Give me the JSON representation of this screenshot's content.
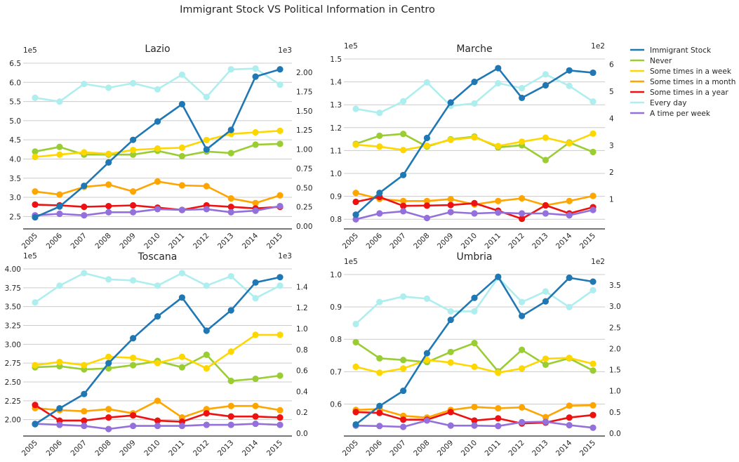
{
  "figure_title": "Immigrant Stock VS Political Information in Centro",
  "years": [
    "2005",
    "2006",
    "2007",
    "2008",
    "2009",
    "2010",
    "2011",
    "2012",
    "2013",
    "2014",
    "2015"
  ],
  "legend": [
    {
      "name": "Immigrant Stock",
      "color": "#1f77b4"
    },
    {
      "name": "Never",
      "color": "#9acd32"
    },
    {
      "name": "Some times in a week",
      "color": "#ffd700"
    },
    {
      "name": "Some times in a month",
      "color": "#ffa500"
    },
    {
      "name": "Some times in a year",
      "color": "#ee1111"
    },
    {
      "name": "Every day",
      "color": "#afeeee"
    },
    {
      "name": "A time per week",
      "color": "#9370db"
    }
  ],
  "chart_data": [
    {
      "type": "line",
      "title": "Lazio",
      "x": [
        "2005",
        "2006",
        "2007",
        "2008",
        "2009",
        "2010",
        "2011",
        "2012",
        "2013",
        "2014",
        "2015"
      ],
      "left_axis": {
        "multiplier": "1e5",
        "lim": [
          2.25,
          6.5
        ],
        "ticks": [
          "2.5",
          "3.0",
          "3.5",
          "4.0",
          "4.5",
          "5.0",
          "5.5",
          "6.0",
          "6.5"
        ]
      },
      "right_axis": {
        "multiplier": "1e3",
        "lim": [
          0,
          2.12
        ],
        "ticks": [
          "0.00",
          "0.25",
          "0.50",
          "0.75",
          "1.00",
          "1.25",
          "1.50",
          "1.75",
          "2.00"
        ]
      },
      "series": [
        {
          "name": "Immigrant Stock",
          "axis": "left",
          "values": [
            2.48,
            2.76,
            3.3,
            3.91,
            4.5,
            4.98,
            5.43,
            4.25,
            4.76,
            6.15,
            6.34
          ]
        },
        {
          "name": "Never",
          "axis": "right",
          "values": [
            0.97,
            1.03,
            0.93,
            0.93,
            0.93,
            0.98,
            0.91,
            0.97,
            0.95,
            1.06,
            1.07
          ]
        },
        {
          "name": "Some times in a week",
          "axis": "right",
          "values": [
            0.9,
            0.93,
            0.96,
            0.94,
            0.99,
            1.01,
            1.02,
            1.12,
            1.2,
            1.22,
            1.24
          ]
        },
        {
          "name": "Some times in a month",
          "axis": "right",
          "values": [
            0.45,
            0.41,
            0.51,
            0.54,
            0.45,
            0.58,
            0.53,
            0.52,
            0.36,
            0.3,
            0.4
          ]
        },
        {
          "name": "Some times in a year",
          "axis": "right",
          "values": [
            0.28,
            0.27,
            0.25,
            0.26,
            0.27,
            0.24,
            0.21,
            0.27,
            0.25,
            0.23,
            0.25
          ]
        },
        {
          "name": "Every day",
          "axis": "right",
          "values": [
            1.67,
            1.62,
            1.85,
            1.8,
            1.86,
            1.78,
            1.97,
            1.68,
            2.04,
            2.05,
            1.84
          ]
        },
        {
          "name": "A time per week",
          "axis": "right",
          "values": [
            0.14,
            0.16,
            0.14,
            0.18,
            0.18,
            0.22,
            0.21,
            0.22,
            0.18,
            0.2,
            0.26
          ]
        }
      ]
    },
    {
      "type": "line",
      "title": "Marche",
      "x": [
        "2005",
        "2006",
        "2007",
        "2008",
        "2009",
        "2010",
        "2011",
        "2012",
        "2013",
        "2014",
        "2015"
      ],
      "left_axis": {
        "multiplier": "1e5",
        "lim": [
          0.77,
          1.5
        ],
        "ticks": [
          "0.8",
          "0.9",
          "1.0",
          "1.1",
          "1.2",
          "1.3",
          "1.4",
          "1.5"
        ]
      },
      "right_axis": {
        "multiplier": "1e2",
        "lim": [
          0,
          6.2
        ],
        "ticks": [
          "1",
          "2",
          "3",
          "4",
          "5",
          "6"
        ]
      },
      "series": [
        {
          "name": "Immigrant Stock",
          "axis": "left",
          "values": [
            0.82,
            0.915,
            0.993,
            1.155,
            1.31,
            1.4,
            1.46,
            1.33,
            1.385,
            1.45,
            1.44
          ]
        },
        {
          "name": "Never",
          "axis": "right",
          "values": [
            3.05,
            3.35,
            3.42,
            2.95,
            3.22,
            3.32,
            2.92,
            3.0,
            2.45,
            3.1,
            2.75
          ]
        },
        {
          "name": "Some times in a week",
          "axis": "right",
          "values": [
            3.02,
            2.95,
            2.82,
            2.98,
            3.2,
            3.29,
            2.97,
            3.13,
            3.28,
            3.07,
            3.43
          ]
        },
        {
          "name": "Some times in a month",
          "axis": "right",
          "values": [
            1.23,
            1.01,
            0.93,
            0.93,
            1.0,
            0.8,
            0.93,
            1.03,
            0.77,
            0.93,
            1.12
          ]
        },
        {
          "name": "Some times in a year",
          "axis": "right",
          "values": [
            0.9,
            1.08,
            0.75,
            0.76,
            0.78,
            0.85,
            0.57,
            0.27,
            0.77,
            0.47,
            0.7
          ]
        },
        {
          "name": "Every day",
          "axis": "right",
          "values": [
            4.35,
            4.2,
            4.63,
            5.33,
            4.46,
            4.55,
            5.3,
            5.12,
            5.63,
            5.2,
            4.62
          ]
        },
        {
          "name": "A time per week",
          "axis": "right",
          "values": [
            0.25,
            0.47,
            0.55,
            0.3,
            0.52,
            0.47,
            0.5,
            0.47,
            0.47,
            0.4,
            0.6
          ]
        }
      ]
    },
    {
      "type": "line",
      "title": "Toscana",
      "x": [
        "2005",
        "2006",
        "2007",
        "2008",
        "2009",
        "2010",
        "2011",
        "2012",
        "2013",
        "2014",
        "2015"
      ],
      "left_axis": {
        "multiplier": "1e5",
        "lim": [
          1.82,
          4.0
        ],
        "ticks": [
          "2.00",
          "2.25",
          "2.50",
          "2.75",
          "3.00",
          "3.25",
          "3.50",
          "3.75",
          "4.00"
        ]
      },
      "right_axis": {
        "multiplier": "1e3",
        "lim": [
          0,
          1.57
        ],
        "ticks": [
          "0.0",
          "0.2",
          "0.4",
          "0.6",
          "0.8",
          "1.0",
          "1.2",
          "1.4"
        ]
      },
      "series": [
        {
          "name": "Immigrant Stock",
          "axis": "left",
          "values": [
            1.94,
            2.15,
            2.34,
            2.75,
            3.08,
            3.37,
            3.62,
            3.18,
            3.45,
            3.82,
            3.89
          ]
        },
        {
          "name": "Never",
          "axis": "right",
          "values": [
            0.63,
            0.64,
            0.61,
            0.62,
            0.65,
            0.69,
            0.63,
            0.75,
            0.5,
            0.52,
            0.55
          ]
        },
        {
          "name": "Some times in a week",
          "axis": "right",
          "values": [
            0.65,
            0.68,
            0.65,
            0.73,
            0.72,
            0.67,
            0.73,
            0.62,
            0.78,
            0.94,
            0.94
          ]
        },
        {
          "name": "Some times in a month",
          "axis": "right",
          "values": [
            0.24,
            0.22,
            0.21,
            0.23,
            0.19,
            0.31,
            0.15,
            0.23,
            0.26,
            0.26,
            0.22
          ]
        },
        {
          "name": "Some times in a year",
          "axis": "right",
          "values": [
            0.27,
            0.12,
            0.12,
            0.15,
            0.17,
            0.12,
            0.11,
            0.19,
            0.16,
            0.16,
            0.15
          ]
        },
        {
          "name": "Every day",
          "axis": "right",
          "values": [
            1.25,
            1.41,
            1.53,
            1.47,
            1.46,
            1.41,
            1.53,
            1.41,
            1.5,
            1.29,
            1.41
          ]
        },
        {
          "name": "A time per week",
          "axis": "right",
          "values": [
            0.09,
            0.08,
            0.07,
            0.04,
            0.07,
            0.07,
            0.07,
            0.08,
            0.08,
            0.09,
            0.08
          ]
        }
      ]
    },
    {
      "type": "line",
      "title": "Umbria",
      "x": [
        "2005",
        "2006",
        "2007",
        "2008",
        "2009",
        "2010",
        "2011",
        "2012",
        "2013",
        "2014",
        "2015"
      ],
      "left_axis": {
        "multiplier": "1e5",
        "lim": [
          0.51,
          1.0
        ],
        "ticks": [
          "0.6",
          "0.7",
          "0.8",
          "0.9",
          "1.0"
        ]
      },
      "right_axis": {
        "multiplier": "1e2",
        "lim": [
          0,
          3.75
        ],
        "ticks": [
          "0.0",
          "0.5",
          "1.0",
          "1.5",
          "2.0",
          "2.5",
          "3.0",
          "3.5"
        ]
      },
      "series": [
        {
          "name": "Immigrant Stock",
          "axis": "left",
          "values": [
            0.537,
            0.594,
            0.641,
            0.757,
            0.86,
            0.928,
            0.993,
            0.872,
            0.917,
            0.99,
            0.978
          ]
        },
        {
          "name": "Never",
          "axis": "right",
          "values": [
            2.15,
            1.77,
            1.73,
            1.68,
            1.92,
            2.13,
            1.46,
            1.97,
            1.62,
            1.77,
            1.48
          ]
        },
        {
          "name": "Some times in a week",
          "axis": "right",
          "values": [
            1.57,
            1.43,
            1.53,
            1.73,
            1.67,
            1.57,
            1.43,
            1.53,
            1.76,
            1.78,
            1.64
          ]
        },
        {
          "name": "Some times in a month",
          "axis": "right",
          "values": [
            0.55,
            0.57,
            0.41,
            0.37,
            0.55,
            0.62,
            0.59,
            0.61,
            0.38,
            0.65,
            0.66
          ]
        },
        {
          "name": "Some times in a year",
          "axis": "right",
          "values": [
            0.5,
            0.48,
            0.32,
            0.32,
            0.5,
            0.3,
            0.35,
            0.23,
            0.25,
            0.37,
            0.43
          ]
        },
        {
          "name": "Every day",
          "axis": "right",
          "values": [
            2.58,
            3.1,
            3.23,
            3.18,
            2.88,
            2.88,
            3.68,
            3.1,
            3.35,
            2.98,
            3.38
          ]
        },
        {
          "name": "A time per week",
          "axis": "right",
          "values": [
            0.18,
            0.17,
            0.15,
            0.3,
            0.18,
            0.18,
            0.17,
            0.26,
            0.27,
            0.19,
            0.13
          ]
        }
      ]
    }
  ]
}
